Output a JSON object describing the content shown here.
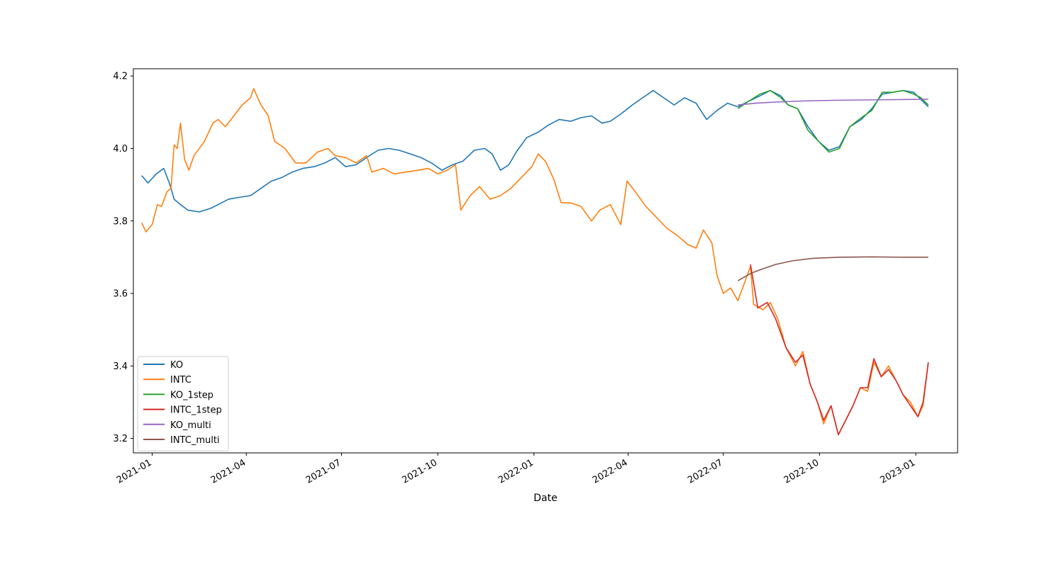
{
  "chart_data": {
    "type": "line",
    "xlabel": "Date",
    "ylabel": "",
    "x_range": [
      "2020-12-14",
      "2023-02-10"
    ],
    "ylim": [
      3.16,
      4.22
    ],
    "y_ticks": [
      3.2,
      3.4,
      3.6,
      3.8,
      4.0,
      4.2
    ],
    "y_tick_labels": [
      "3.2",
      "3.4",
      "3.6",
      "3.8",
      "4.0",
      "4.2"
    ],
    "x_ticks": [
      "2021-01-01",
      "2021-04-01",
      "2021-07-01",
      "2021-10-01",
      "2022-01-01",
      "2022-04-01",
      "2022-07-01",
      "2022-10-01",
      "2023-01-01"
    ],
    "x_tick_labels": [
      "2021-01",
      "2021-04",
      "2021-07",
      "2021-10",
      "2022-01",
      "2022-04",
      "2022-07",
      "2022-10",
      "2023-01"
    ],
    "grid": false,
    "legend_position": "lower-left",
    "series": [
      {
        "name": "KO",
        "color": "#1f77b4",
        "points": [
          [
            "2020-12-22",
            3.925
          ],
          [
            "2020-12-28",
            3.905
          ],
          [
            "2021-01-05",
            3.93
          ],
          [
            "2021-01-12",
            3.945
          ],
          [
            "2021-01-18",
            3.9
          ],
          [
            "2021-01-22",
            3.86
          ],
          [
            "2021-01-28",
            3.845
          ],
          [
            "2021-02-04",
            3.83
          ],
          [
            "2021-02-15",
            3.825
          ],
          [
            "2021-02-26",
            3.835
          ],
          [
            "2021-03-05",
            3.845
          ],
          [
            "2021-03-15",
            3.86
          ],
          [
            "2021-03-25",
            3.865
          ],
          [
            "2021-04-05",
            3.87
          ],
          [
            "2021-04-15",
            3.89
          ],
          [
            "2021-04-25",
            3.91
          ],
          [
            "2021-05-05",
            3.92
          ],
          [
            "2021-05-15",
            3.935
          ],
          [
            "2021-05-25",
            3.945
          ],
          [
            "2021-06-05",
            3.95
          ],
          [
            "2021-06-15",
            3.96
          ],
          [
            "2021-06-25",
            3.975
          ],
          [
            "2021-07-05",
            3.95
          ],
          [
            "2021-07-15",
            3.955
          ],
          [
            "2021-07-25",
            3.975
          ],
          [
            "2021-08-05",
            3.995
          ],
          [
            "2021-08-15",
            4.0
          ],
          [
            "2021-08-25",
            3.995
          ],
          [
            "2021-09-05",
            3.985
          ],
          [
            "2021-09-15",
            3.975
          ],
          [
            "2021-09-25",
            3.96
          ],
          [
            "2021-10-05",
            3.94
          ],
          [
            "2021-10-15",
            3.955
          ],
          [
            "2021-10-25",
            3.965
          ],
          [
            "2021-11-05",
            3.995
          ],
          [
            "2021-11-15",
            4.0
          ],
          [
            "2021-11-22",
            3.985
          ],
          [
            "2021-11-30",
            3.94
          ],
          [
            "2021-12-08",
            3.955
          ],
          [
            "2021-12-15",
            3.99
          ],
          [
            "2021-12-25",
            4.03
          ],
          [
            "2022-01-05",
            4.045
          ],
          [
            "2022-01-15",
            4.065
          ],
          [
            "2022-01-25",
            4.08
          ],
          [
            "2022-02-05",
            4.075
          ],
          [
            "2022-02-15",
            4.085
          ],
          [
            "2022-02-25",
            4.09
          ],
          [
            "2022-03-07",
            4.07
          ],
          [
            "2022-03-15",
            4.075
          ],
          [
            "2022-03-25",
            4.095
          ],
          [
            "2022-04-05",
            4.12
          ],
          [
            "2022-04-15",
            4.14
          ],
          [
            "2022-04-25",
            4.16
          ],
          [
            "2022-05-05",
            4.14
          ],
          [
            "2022-05-15",
            4.12
          ],
          [
            "2022-05-25",
            4.14
          ],
          [
            "2022-06-05",
            4.125
          ],
          [
            "2022-06-15",
            4.08
          ],
          [
            "2022-06-25",
            4.105
          ],
          [
            "2022-07-05",
            4.125
          ],
          [
            "2022-07-15",
            4.115
          ],
          [
            "2022-07-25",
            4.13
          ],
          [
            "2022-08-05",
            4.145
          ],
          [
            "2022-08-15",
            4.16
          ],
          [
            "2022-08-25",
            4.145
          ],
          [
            "2022-09-01",
            4.12
          ],
          [
            "2022-09-10",
            4.11
          ],
          [
            "2022-09-20",
            4.06
          ],
          [
            "2022-09-30",
            4.02
          ],
          [
            "2022-10-10",
            3.995
          ],
          [
            "2022-10-20",
            4.005
          ],
          [
            "2022-10-30",
            4.06
          ],
          [
            "2022-11-10",
            4.08
          ],
          [
            "2022-11-20",
            4.11
          ],
          [
            "2022-11-30",
            4.15
          ],
          [
            "2022-12-10",
            4.155
          ],
          [
            "2022-12-20",
            4.16
          ],
          [
            "2022-12-30",
            4.155
          ],
          [
            "2023-01-06",
            4.135
          ],
          [
            "2023-01-13",
            4.115
          ]
        ]
      },
      {
        "name": "INTC",
        "color": "#ff7f0e",
        "points": [
          [
            "2020-12-22",
            3.795
          ],
          [
            "2020-12-26",
            3.77
          ],
          [
            "2021-01-01",
            3.79
          ],
          [
            "2021-01-06",
            3.845
          ],
          [
            "2021-01-10",
            3.84
          ],
          [
            "2021-01-15",
            3.88
          ],
          [
            "2021-01-19",
            3.89
          ],
          [
            "2021-01-22",
            4.01
          ],
          [
            "2021-01-25",
            4.0
          ],
          [
            "2021-01-28",
            4.07
          ],
          [
            "2021-02-01",
            3.97
          ],
          [
            "2021-02-05",
            3.94
          ],
          [
            "2021-02-10",
            3.98
          ],
          [
            "2021-02-20",
            4.02
          ],
          [
            "2021-02-28",
            4.07
          ],
          [
            "2021-03-05",
            4.08
          ],
          [
            "2021-03-12",
            4.06
          ],
          [
            "2021-03-20",
            4.09
          ],
          [
            "2021-03-28",
            4.12
          ],
          [
            "2021-04-05",
            4.14
          ],
          [
            "2021-04-08",
            4.165
          ],
          [
            "2021-04-15",
            4.12
          ],
          [
            "2021-04-22",
            4.09
          ],
          [
            "2021-04-28",
            4.02
          ],
          [
            "2021-05-08",
            4.0
          ],
          [
            "2021-05-18",
            3.96
          ],
          [
            "2021-05-28",
            3.96
          ],
          [
            "2021-06-08",
            3.99
          ],
          [
            "2021-06-18",
            4.0
          ],
          [
            "2021-06-25",
            3.98
          ],
          [
            "2021-07-05",
            3.975
          ],
          [
            "2021-07-15",
            3.96
          ],
          [
            "2021-07-25",
            3.98
          ],
          [
            "2021-07-30",
            3.935
          ],
          [
            "2021-08-10",
            3.945
          ],
          [
            "2021-08-20",
            3.93
          ],
          [
            "2021-09-01",
            3.935
          ],
          [
            "2021-09-12",
            3.94
          ],
          [
            "2021-09-22",
            3.945
          ],
          [
            "2021-10-01",
            3.93
          ],
          [
            "2021-10-10",
            3.94
          ],
          [
            "2021-10-18",
            3.955
          ],
          [
            "2021-10-23",
            3.83
          ],
          [
            "2021-11-01",
            3.87
          ],
          [
            "2021-11-10",
            3.895
          ],
          [
            "2021-11-20",
            3.86
          ],
          [
            "2021-11-30",
            3.87
          ],
          [
            "2021-12-10",
            3.89
          ],
          [
            "2021-12-20",
            3.92
          ],
          [
            "2021-12-30",
            3.95
          ],
          [
            "2022-01-05",
            3.985
          ],
          [
            "2022-01-12",
            3.965
          ],
          [
            "2022-01-20",
            3.915
          ],
          [
            "2022-01-27",
            3.85
          ],
          [
            "2022-02-05",
            3.85
          ],
          [
            "2022-02-15",
            3.84
          ],
          [
            "2022-02-25",
            3.8
          ],
          [
            "2022-03-05",
            3.83
          ],
          [
            "2022-03-15",
            3.845
          ],
          [
            "2022-03-25",
            3.79
          ],
          [
            "2022-03-31",
            3.91
          ],
          [
            "2022-04-08",
            3.88
          ],
          [
            "2022-04-18",
            3.84
          ],
          [
            "2022-04-28",
            3.81
          ],
          [
            "2022-05-08",
            3.78
          ],
          [
            "2022-05-18",
            3.76
          ],
          [
            "2022-05-28",
            3.735
          ],
          [
            "2022-06-05",
            3.725
          ],
          [
            "2022-06-12",
            3.775
          ],
          [
            "2022-06-20",
            3.74
          ],
          [
            "2022-06-25",
            3.65
          ],
          [
            "2022-07-01",
            3.6
          ],
          [
            "2022-07-08",
            3.615
          ],
          [
            "2022-07-15",
            3.58
          ],
          [
            "2022-07-22",
            3.635
          ],
          [
            "2022-07-27",
            3.675
          ],
          [
            "2022-07-30",
            3.57
          ],
          [
            "2022-08-08",
            3.555
          ],
          [
            "2022-08-15",
            3.575
          ],
          [
            "2022-08-22",
            3.53
          ],
          [
            "2022-08-30",
            3.45
          ],
          [
            "2022-09-08",
            3.4
          ],
          [
            "2022-09-15",
            3.44
          ],
          [
            "2022-09-22",
            3.35
          ],
          [
            "2022-09-29",
            3.3
          ],
          [
            "2022-10-05",
            3.24
          ],
          [
            "2022-10-12",
            3.29
          ],
          [
            "2022-10-19",
            3.21
          ],
          [
            "2022-10-26",
            3.25
          ],
          [
            "2022-11-02",
            3.29
          ],
          [
            "2022-11-09",
            3.34
          ],
          [
            "2022-11-16",
            3.33
          ],
          [
            "2022-11-22",
            3.41
          ],
          [
            "2022-11-29",
            3.37
          ],
          [
            "2022-12-06",
            3.4
          ],
          [
            "2022-12-13",
            3.36
          ],
          [
            "2022-12-20",
            3.32
          ],
          [
            "2022-12-27",
            3.3
          ],
          [
            "2023-01-03",
            3.26
          ],
          [
            "2023-01-08",
            3.29
          ],
          [
            "2023-01-13",
            3.41
          ]
        ]
      },
      {
        "name": "KO_1step",
        "color": "#2ca02c",
        "points": [
          [
            "2022-07-15",
            4.11
          ],
          [
            "2022-07-25",
            4.13
          ],
          [
            "2022-08-05",
            4.15
          ],
          [
            "2022-08-15",
            4.16
          ],
          [
            "2022-08-25",
            4.14
          ],
          [
            "2022-09-01",
            4.12
          ],
          [
            "2022-09-10",
            4.11
          ],
          [
            "2022-09-20",
            4.05
          ],
          [
            "2022-09-30",
            4.02
          ],
          [
            "2022-10-10",
            3.99
          ],
          [
            "2022-10-20",
            4.0
          ],
          [
            "2022-10-30",
            4.06
          ],
          [
            "2022-11-10",
            4.085
          ],
          [
            "2022-11-20",
            4.105
          ],
          [
            "2022-11-30",
            4.155
          ],
          [
            "2022-12-10",
            4.155
          ],
          [
            "2022-12-20",
            4.16
          ],
          [
            "2022-12-30",
            4.15
          ],
          [
            "2023-01-06",
            4.14
          ],
          [
            "2023-01-13",
            4.12
          ]
        ]
      },
      {
        "name": "INTC_1step",
        "color": "#d62728",
        "points": [
          [
            "2022-07-27",
            3.68
          ],
          [
            "2022-08-03",
            3.56
          ],
          [
            "2022-08-12",
            3.575
          ],
          [
            "2022-08-20",
            3.53
          ],
          [
            "2022-08-30",
            3.45
          ],
          [
            "2022-09-08",
            3.41
          ],
          [
            "2022-09-15",
            3.43
          ],
          [
            "2022-09-22",
            3.35
          ],
          [
            "2022-09-29",
            3.3
          ],
          [
            "2022-10-05",
            3.25
          ],
          [
            "2022-10-12",
            3.29
          ],
          [
            "2022-10-19",
            3.21
          ],
          [
            "2022-10-26",
            3.25
          ],
          [
            "2022-11-02",
            3.29
          ],
          [
            "2022-11-09",
            3.34
          ],
          [
            "2022-11-16",
            3.34
          ],
          [
            "2022-11-22",
            3.42
          ],
          [
            "2022-11-29",
            3.37
          ],
          [
            "2022-12-06",
            3.39
          ],
          [
            "2022-12-13",
            3.36
          ],
          [
            "2022-12-20",
            3.32
          ],
          [
            "2022-12-27",
            3.29
          ],
          [
            "2023-01-03",
            3.26
          ],
          [
            "2023-01-08",
            3.3
          ],
          [
            "2023-01-13",
            3.41
          ]
        ]
      },
      {
        "name": "KO_multi",
        "color": "#9467bd",
        "points": [
          [
            "2022-07-15",
            4.12
          ],
          [
            "2022-08-01",
            4.125
          ],
          [
            "2022-08-20",
            4.128
          ],
          [
            "2022-09-15",
            4.131
          ],
          [
            "2022-10-15",
            4.133
          ],
          [
            "2022-11-15",
            4.134
          ],
          [
            "2022-12-15",
            4.135
          ],
          [
            "2023-01-13",
            4.136
          ]
        ]
      },
      {
        "name": "INTC_multi",
        "color": "#8c564b",
        "points": [
          [
            "2022-07-15",
            3.635
          ],
          [
            "2022-07-27",
            3.655
          ],
          [
            "2022-08-05",
            3.665
          ],
          [
            "2022-08-20",
            3.68
          ],
          [
            "2022-09-05",
            3.69
          ],
          [
            "2022-09-25",
            3.697
          ],
          [
            "2022-10-20",
            3.7
          ],
          [
            "2022-11-20",
            3.701
          ],
          [
            "2022-12-20",
            3.7
          ],
          [
            "2023-01-13",
            3.7
          ]
        ]
      }
    ]
  }
}
